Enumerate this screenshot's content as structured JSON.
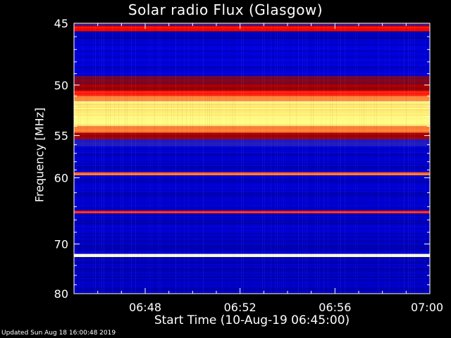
{
  "chart_data": {
    "type": "heatmap",
    "title": "Solar radio Flux (Glasgow)",
    "xlabel": "Start Time (10-Aug-19 06:45:00)",
    "ylabel": "Frequency [MHz]",
    "x_range_minutes": [
      0,
      15
    ],
    "x_ticks": [
      {
        "minute": 3,
        "label": "06:48"
      },
      {
        "minute": 7,
        "label": "06:52"
      },
      {
        "minute": 11,
        "label": "06:56"
      },
      {
        "minute": 15,
        "label": "07:00"
      }
    ],
    "y_range_mhz": [
      45,
      80
    ],
    "y_reciprocal_axis": true,
    "y_ticks": [
      45,
      50,
      55,
      60,
      70,
      80
    ],
    "colormap": [
      "#000080",
      "#0000ff",
      "#2020c0",
      "#8b0000",
      "#ff0000",
      "#ff8c3c",
      "#ffff80",
      "#ffffff"
    ],
    "band_intensity": [
      {
        "f_start": 45.0,
        "f_end": 45.2,
        "intensity": 0.35
      },
      {
        "f_start": 45.2,
        "f_end": 45.6,
        "intensity": 0.55
      },
      {
        "f_start": 45.6,
        "f_end": 46.2,
        "intensity": 0.05
      },
      {
        "f_start": 46.2,
        "f_end": 49.2,
        "intensity": 0.1
      },
      {
        "f_start": 49.2,
        "f_end": 49.9,
        "intensity": 0.4
      },
      {
        "f_start": 49.9,
        "f_end": 50.5,
        "intensity": 0.45
      },
      {
        "f_start": 50.5,
        "f_end": 51.0,
        "intensity": 0.6
      },
      {
        "f_start": 51.0,
        "f_end": 51.5,
        "intensity": 0.72
      },
      {
        "f_start": 51.5,
        "f_end": 54.0,
        "intensity": 0.85
      },
      {
        "f_start": 54.0,
        "f_end": 54.7,
        "intensity": 0.7
      },
      {
        "f_start": 54.7,
        "f_end": 55.4,
        "intensity": 0.45
      },
      {
        "f_start": 55.4,
        "f_end": 56.2,
        "intensity": 0.28
      },
      {
        "f_start": 56.2,
        "f_end": 59.3,
        "intensity": 0.08
      },
      {
        "f_start": 59.3,
        "f_end": 59.7,
        "intensity": 0.68
      },
      {
        "f_start": 59.7,
        "f_end": 64.6,
        "intensity": 0.08
      },
      {
        "f_start": 64.6,
        "f_end": 65.0,
        "intensity": 0.62
      },
      {
        "f_start": 65.0,
        "f_end": 71.8,
        "intensity": 0.08
      },
      {
        "f_start": 71.8,
        "f_end": 72.4,
        "intensity": 0.95
      },
      {
        "f_start": 72.4,
        "f_end": 80.0,
        "intensity": 0.07
      }
    ]
  },
  "footer": "Updated Sun Aug 18 16:00:48 2019"
}
